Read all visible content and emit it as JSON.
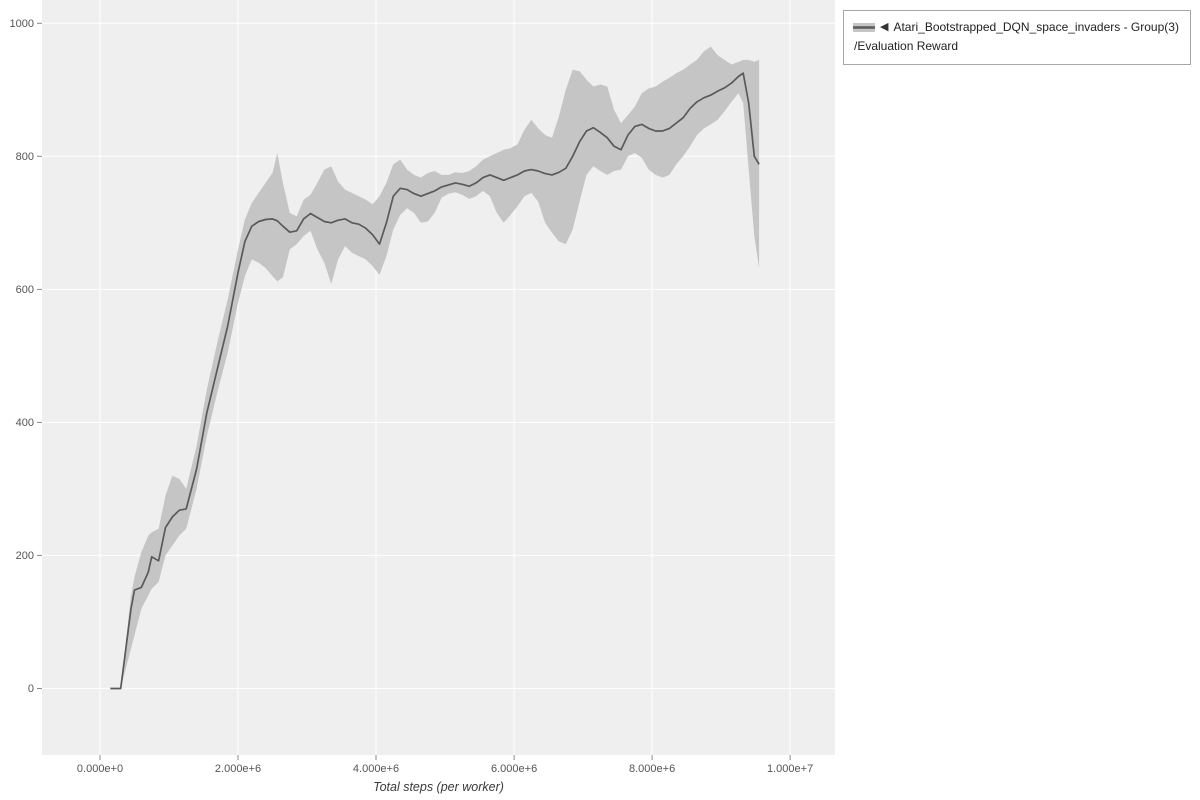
{
  "legend": {
    "marker": "◀",
    "line1": "Atari_Bootstrapped_DQN_space_invaders - Group(3)",
    "line2": "/Evaluation Reward"
  },
  "chart_data": {
    "type": "line",
    "title": "",
    "xlabel": "Total steps (per worker)",
    "ylabel": "",
    "grid": true,
    "legend_position": "top-right-outside",
    "legend_entries": [
      "Atari_Bootstrapped_DQN_space_invaders - Group(3)/Evaluation Reward"
    ],
    "xlim": [
      -840000,
      10650000
    ],
    "ylim": [
      -100,
      1035
    ],
    "x_ticks": [
      0,
      2000000,
      4000000,
      6000000,
      8000000,
      10000000
    ],
    "x_tick_labels": [
      "0.000e+0",
      "2.000e+6",
      "4.000e+6",
      "6.000e+6",
      "8.000e+6",
      "1.000e+7"
    ],
    "y_ticks": [
      0,
      200,
      400,
      600,
      800,
      1000
    ],
    "y_tick_labels": [
      "0",
      "200",
      "400",
      "600",
      "800",
      "1000"
    ],
    "colors": {
      "plot_background": "#efefef",
      "grid": "#ffffff",
      "tick": "#888888",
      "tick_label": "#555555",
      "axis_title": "#3a3a3a",
      "legend_border": "#a6a6a6"
    },
    "series": [
      {
        "name": "Atari_Bootstrapped_DQN_space_invaders - Group(3)/Evaluation Reward",
        "color": "#5a5a5a",
        "band_color": "#c5c5c5",
        "x": [
          150000,
          300000,
          450000,
          500000,
          600000,
          700000,
          750000,
          850000,
          950000,
          1050000,
          1150000,
          1250000,
          1400000,
          1550000,
          1700000,
          1850000,
          2000000,
          2100000,
          2200000,
          2300000,
          2400000,
          2500000,
          2570000,
          2650000,
          2750000,
          2850000,
          2950000,
          3050000,
          3150000,
          3250000,
          3350000,
          3450000,
          3550000,
          3650000,
          3750000,
          3850000,
          3950000,
          4050000,
          4150000,
          4250000,
          4350000,
          4450000,
          4550000,
          4650000,
          4750000,
          4850000,
          4950000,
          5050000,
          5150000,
          5250000,
          5350000,
          5450000,
          5550000,
          5650000,
          5750000,
          5850000,
          5950000,
          6050000,
          6150000,
          6250000,
          6350000,
          6450000,
          6550000,
          6650000,
          6750000,
          6850000,
          6950000,
          7050000,
          7150000,
          7250000,
          7350000,
          7450000,
          7550000,
          7650000,
          7750000,
          7850000,
          7950000,
          8050000,
          8150000,
          8250000,
          8350000,
          8450000,
          8550000,
          8650000,
          8750000,
          8850000,
          8950000,
          9050000,
          9150000,
          9250000,
          9320000,
          9400000,
          9480000,
          9550000
        ],
        "mean": [
          0,
          0,
          120,
          148,
          152,
          175,
          198,
          192,
          242,
          258,
          268,
          270,
          330,
          415,
          480,
          545,
          625,
          672,
          695,
          702,
          705,
          706,
          703,
          695,
          686,
          688,
          706,
          714,
          708,
          702,
          700,
          704,
          706,
          700,
          698,
          692,
          682,
          668,
          700,
          740,
          752,
          750,
          744,
          740,
          744,
          748,
          754,
          757,
          760,
          758,
          755,
          760,
          768,
          772,
          768,
          764,
          768,
          772,
          778,
          780,
          778,
          774,
          772,
          776,
          782,
          800,
          822,
          838,
          843,
          836,
          828,
          815,
          810,
          832,
          845,
          848,
          842,
          838,
          838,
          842,
          850,
          858,
          872,
          882,
          888,
          892,
          898,
          903,
          910,
          920,
          925,
          880,
          800,
          788
        ],
        "lo": [
          0,
          0,
          60,
          80,
          120,
          140,
          150,
          160,
          200,
          215,
          230,
          240,
          300,
          380,
          445,
          505,
          580,
          620,
          645,
          640,
          632,
          620,
          612,
          618,
          660,
          668,
          680,
          688,
          660,
          640,
          608,
          645,
          665,
          655,
          650,
          645,
          635,
          622,
          650,
          690,
          712,
          722,
          715,
          700,
          702,
          715,
          738,
          744,
          746,
          742,
          736,
          740,
          748,
          740,
          715,
          700,
          712,
          725,
          740,
          745,
          732,
          700,
          685,
          672,
          668,
          690,
          732,
          772,
          785,
          778,
          772,
          778,
          780,
          800,
          805,
          798,
          780,
          772,
          768,
          772,
          788,
          800,
          815,
          832,
          842,
          848,
          855,
          868,
          882,
          895,
          880,
          780,
          680,
          632
        ],
        "hi": [
          0,
          0,
          140,
          168,
          205,
          230,
          235,
          240,
          290,
          320,
          315,
          300,
          365,
          450,
          520,
          585,
          660,
          705,
          730,
          745,
          760,
          775,
          805,
          760,
          715,
          710,
          735,
          742,
          760,
          780,
          785,
          762,
          750,
          745,
          740,
          735,
          728,
          740,
          760,
          788,
          795,
          780,
          772,
          768,
          775,
          778,
          772,
          772,
          776,
          775,
          778,
          785,
          795,
          800,
          805,
          810,
          812,
          818,
          840,
          855,
          842,
          832,
          828,
          860,
          900,
          930,
          928,
          915,
          905,
          908,
          905,
          870,
          850,
          862,
          875,
          895,
          902,
          905,
          912,
          918,
          925,
          930,
          938,
          945,
          958,
          965,
          952,
          945,
          938,
          942,
          945,
          945,
          942,
          945
        ]
      }
    ]
  }
}
